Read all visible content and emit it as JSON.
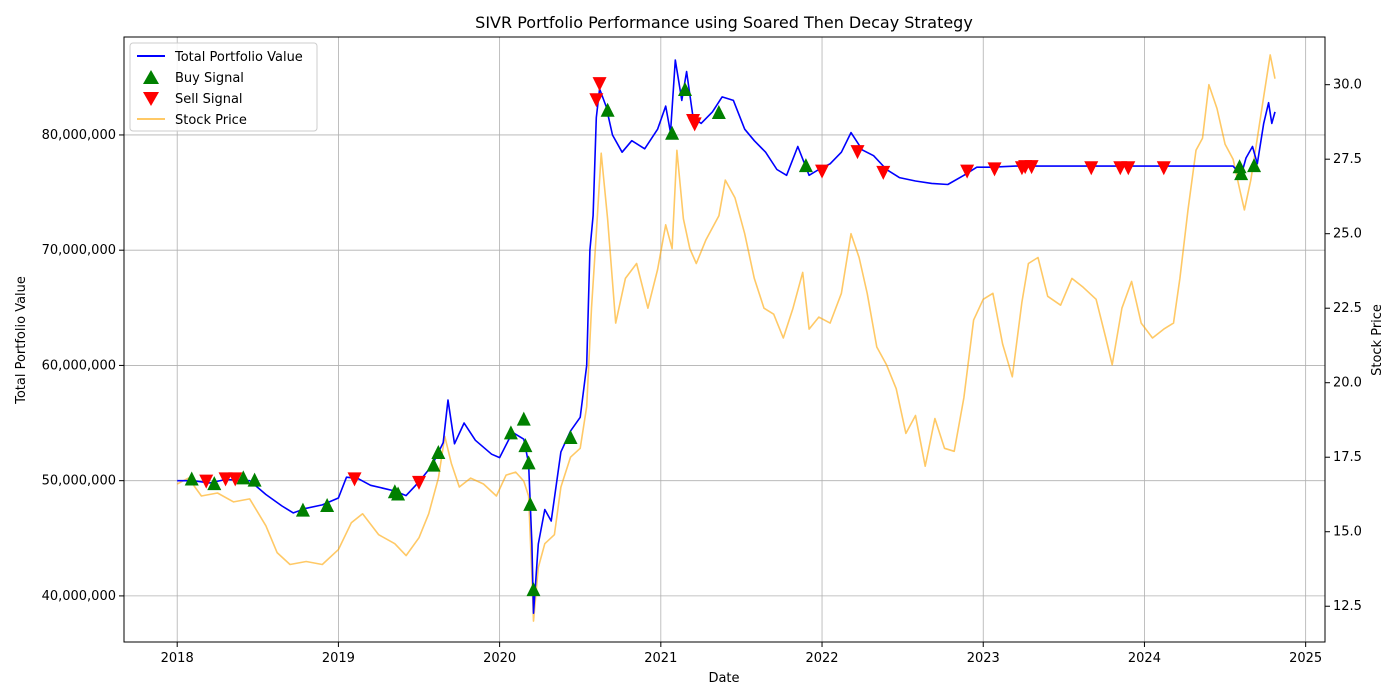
{
  "chart_data": {
    "type": "line",
    "title": "SIVR Portfolio Performance using Soared Then Decay Strategy",
    "xlabel": "Date",
    "ylabel_left": "Total Portfolio Value",
    "ylabel_right": "Stock Price",
    "x_ticks": [
      "2018",
      "2019",
      "2020",
      "2021",
      "2022",
      "2023",
      "2024",
      "2025"
    ],
    "xlim": [
      2017.67,
      2025.12
    ],
    "ylim_left": [
      36000000,
      88500000
    ],
    "ylim_right": [
      11.3,
      31.6
    ],
    "y_ticks_left": [
      {
        "value": 40000000,
        "label": "40,000,000"
      },
      {
        "value": 50000000,
        "label": "50,000,000"
      },
      {
        "value": 60000000,
        "label": "60,000,000"
      },
      {
        "value": 70000000,
        "label": "70,000,000"
      },
      {
        "value": 80000000,
        "label": "80,000,000"
      }
    ],
    "y_ticks_right": [
      {
        "value": 12.5,
        "label": "12.5"
      },
      {
        "value": 15.0,
        "label": "15.0"
      },
      {
        "value": 17.5,
        "label": "17.5"
      },
      {
        "value": 20.0,
        "label": "20.0"
      },
      {
        "value": 22.5,
        "label": "22.5"
      },
      {
        "value": 25.0,
        "label": "25.0"
      },
      {
        "value": 27.5,
        "label": "27.5"
      },
      {
        "value": 30.0,
        "label": "30.0"
      }
    ],
    "grid": true,
    "legend": {
      "position": "top-left",
      "entries": [
        {
          "label": "Total Portfolio Value",
          "marker": "line",
          "color": "#0000ff"
        },
        {
          "label": "Buy Signal",
          "marker": "triangle-up",
          "color": "#008000"
        },
        {
          "label": "Sell Signal",
          "marker": "triangle-down",
          "color": "#ff0000"
        },
        {
          "label": "Stock Price",
          "marker": "line",
          "color": "#ffa500"
        }
      ]
    },
    "series": [
      {
        "name": "Total Portfolio Value",
        "axis": "left",
        "color": "#0000ff",
        "points": [
          [
            2018.0,
            50000000
          ],
          [
            2018.1,
            50000000
          ],
          [
            2018.2,
            49800000
          ],
          [
            2018.3,
            50100000
          ],
          [
            2018.45,
            50000000
          ],
          [
            2018.55,
            48800000
          ],
          [
            2018.65,
            47800000
          ],
          [
            2018.72,
            47200000
          ],
          [
            2018.8,
            47600000
          ],
          [
            2018.9,
            47900000
          ],
          [
            2019.0,
            48500000
          ],
          [
            2019.05,
            50300000
          ],
          [
            2019.12,
            50200000
          ],
          [
            2019.2,
            49600000
          ],
          [
            2019.35,
            49100000
          ],
          [
            2019.42,
            48700000
          ],
          [
            2019.5,
            49900000
          ],
          [
            2019.58,
            51300000
          ],
          [
            2019.65,
            53300000
          ],
          [
            2019.68,
            57000000
          ],
          [
            2019.72,
            53200000
          ],
          [
            2019.78,
            55000000
          ],
          [
            2019.85,
            53500000
          ],
          [
            2019.95,
            52300000
          ],
          [
            2020.0,
            52000000
          ],
          [
            2020.08,
            54200000
          ],
          [
            2020.15,
            53600000
          ],
          [
            2020.18,
            51500000
          ],
          [
            2020.2,
            44500000
          ],
          [
            2020.21,
            38500000
          ],
          [
            2020.24,
            44500000
          ],
          [
            2020.28,
            47500000
          ],
          [
            2020.32,
            46500000
          ],
          [
            2020.38,
            52500000
          ],
          [
            2020.44,
            54300000
          ],
          [
            2020.5,
            55500000
          ],
          [
            2020.54,
            60000000
          ],
          [
            2020.56,
            70000000
          ],
          [
            2020.58,
            73000000
          ],
          [
            2020.6,
            81500000
          ],
          [
            2020.62,
            84000000
          ],
          [
            2020.66,
            82500000
          ],
          [
            2020.7,
            80000000
          ],
          [
            2020.76,
            78500000
          ],
          [
            2020.82,
            79500000
          ],
          [
            2020.9,
            78800000
          ],
          [
            2020.98,
            80500000
          ],
          [
            2021.03,
            82500000
          ],
          [
            2021.06,
            80200000
          ],
          [
            2021.09,
            86500000
          ],
          [
            2021.13,
            83000000
          ],
          [
            2021.16,
            85500000
          ],
          [
            2021.2,
            81500000
          ],
          [
            2021.25,
            81000000
          ],
          [
            2021.32,
            82000000
          ],
          [
            2021.38,
            83300000
          ],
          [
            2021.45,
            83000000
          ],
          [
            2021.52,
            80500000
          ],
          [
            2021.58,
            79500000
          ],
          [
            2021.65,
            78500000
          ],
          [
            2021.72,
            77000000
          ],
          [
            2021.78,
            76500000
          ],
          [
            2021.85,
            79000000
          ],
          [
            2021.92,
            76500000
          ],
          [
            2021.98,
            77000000
          ],
          [
            2022.05,
            77500000
          ],
          [
            2022.12,
            78500000
          ],
          [
            2022.18,
            80200000
          ],
          [
            2022.25,
            78700000
          ],
          [
            2022.32,
            78200000
          ],
          [
            2022.4,
            77000000
          ],
          [
            2022.48,
            76300000
          ],
          [
            2022.58,
            76000000
          ],
          [
            2022.68,
            75800000
          ],
          [
            2022.78,
            75700000
          ],
          [
            2022.88,
            76500000
          ],
          [
            2022.96,
            77200000
          ],
          [
            2023.05,
            77200000
          ],
          [
            2023.2,
            77300000
          ],
          [
            2023.4,
            77300000
          ],
          [
            2023.7,
            77300000
          ],
          [
            2024.0,
            77300000
          ],
          [
            2024.3,
            77300000
          ],
          [
            2024.55,
            77300000
          ],
          [
            2024.6,
            76500000
          ],
          [
            2024.63,
            78000000
          ],
          [
            2024.67,
            79000000
          ],
          [
            2024.7,
            77500000
          ],
          [
            2024.74,
            81000000
          ],
          [
            2024.77,
            82800000
          ],
          [
            2024.79,
            81000000
          ],
          [
            2024.81,
            82000000
          ]
        ]
      },
      {
        "name": "Stock Price",
        "axis": "right",
        "color": "#ffa500",
        "points": [
          [
            2018.0,
            16.6
          ],
          [
            2018.07,
            16.8
          ],
          [
            2018.15,
            16.2
          ],
          [
            2018.25,
            16.3
          ],
          [
            2018.35,
            16.0
          ],
          [
            2018.45,
            16.1
          ],
          [
            2018.55,
            15.2
          ],
          [
            2018.62,
            14.3
          ],
          [
            2018.7,
            13.9
          ],
          [
            2018.8,
            14.0
          ],
          [
            2018.9,
            13.9
          ],
          [
            2019.0,
            14.4
          ],
          [
            2019.08,
            15.3
          ],
          [
            2019.15,
            15.6
          ],
          [
            2019.25,
            14.9
          ],
          [
            2019.35,
            14.6
          ],
          [
            2019.42,
            14.2
          ],
          [
            2019.5,
            14.8
          ],
          [
            2019.56,
            15.6
          ],
          [
            2019.62,
            16.8
          ],
          [
            2019.66,
            18.2
          ],
          [
            2019.7,
            17.3
          ],
          [
            2019.75,
            16.5
          ],
          [
            2019.82,
            16.8
          ],
          [
            2019.9,
            16.6
          ],
          [
            2019.98,
            16.2
          ],
          [
            2020.04,
            16.9
          ],
          [
            2020.1,
            17.0
          ],
          [
            2020.15,
            16.7
          ],
          [
            2020.18,
            16.2
          ],
          [
            2020.2,
            13.5
          ],
          [
            2020.21,
            12.0
          ],
          [
            2020.24,
            13.8
          ],
          [
            2020.28,
            14.6
          ],
          [
            2020.34,
            14.9
          ],
          [
            2020.38,
            16.5
          ],
          [
            2020.44,
            17.5
          ],
          [
            2020.5,
            17.8
          ],
          [
            2020.54,
            19.2
          ],
          [
            2020.57,
            22.5
          ],
          [
            2020.6,
            25.0
          ],
          [
            2020.63,
            27.7
          ],
          [
            2020.67,
            25.5
          ],
          [
            2020.72,
            22.0
          ],
          [
            2020.78,
            23.5
          ],
          [
            2020.85,
            24.0
          ],
          [
            2020.92,
            22.5
          ],
          [
            2020.98,
            23.8
          ],
          [
            2021.03,
            25.3
          ],
          [
            2021.07,
            24.5
          ],
          [
            2021.1,
            27.8
          ],
          [
            2021.14,
            25.5
          ],
          [
            2021.18,
            24.5
          ],
          [
            2021.22,
            24.0
          ],
          [
            2021.28,
            24.8
          ],
          [
            2021.36,
            25.6
          ],
          [
            2021.4,
            26.8
          ],
          [
            2021.46,
            26.2
          ],
          [
            2021.52,
            25.0
          ],
          [
            2021.58,
            23.5
          ],
          [
            2021.64,
            22.5
          ],
          [
            2021.7,
            22.3
          ],
          [
            2021.76,
            21.5
          ],
          [
            2021.82,
            22.5
          ],
          [
            2021.88,
            23.7
          ],
          [
            2021.92,
            21.8
          ],
          [
            2021.98,
            22.2
          ],
          [
            2022.05,
            22.0
          ],
          [
            2022.12,
            23.0
          ],
          [
            2022.18,
            25.0
          ],
          [
            2022.23,
            24.2
          ],
          [
            2022.28,
            23.0
          ],
          [
            2022.34,
            21.2
          ],
          [
            2022.4,
            20.6
          ],
          [
            2022.46,
            19.8
          ],
          [
            2022.52,
            18.3
          ],
          [
            2022.58,
            18.9
          ],
          [
            2022.64,
            17.2
          ],
          [
            2022.7,
            18.8
          ],
          [
            2022.76,
            17.8
          ],
          [
            2022.82,
            17.7
          ],
          [
            2022.88,
            19.5
          ],
          [
            2022.94,
            22.1
          ],
          [
            2023.0,
            22.8
          ],
          [
            2023.06,
            23.0
          ],
          [
            2023.12,
            21.3
          ],
          [
            2023.18,
            20.2
          ],
          [
            2023.24,
            22.7
          ],
          [
            2023.28,
            24.0
          ],
          [
            2023.34,
            24.2
          ],
          [
            2023.4,
            22.9
          ],
          [
            2023.48,
            22.6
          ],
          [
            2023.55,
            23.5
          ],
          [
            2023.62,
            23.2
          ],
          [
            2023.7,
            22.8
          ],
          [
            2023.76,
            21.5
          ],
          [
            2023.8,
            20.6
          ],
          [
            2023.86,
            22.5
          ],
          [
            2023.92,
            23.4
          ],
          [
            2023.98,
            22.0
          ],
          [
            2024.05,
            21.5
          ],
          [
            2024.12,
            21.8
          ],
          [
            2024.18,
            22.0
          ],
          [
            2024.22,
            23.5
          ],
          [
            2024.27,
            25.8
          ],
          [
            2024.32,
            27.8
          ],
          [
            2024.36,
            28.2
          ],
          [
            2024.4,
            30.0
          ],
          [
            2024.45,
            29.2
          ],
          [
            2024.5,
            28.0
          ],
          [
            2024.55,
            27.5
          ],
          [
            2024.59,
            26.5
          ],
          [
            2024.62,
            25.8
          ],
          [
            2024.66,
            26.8
          ],
          [
            2024.7,
            28.2
          ],
          [
            2024.74,
            29.6
          ],
          [
            2024.78,
            31.0
          ],
          [
            2024.81,
            30.2
          ]
        ]
      }
    ],
    "buy_signals": [
      [
        2018.09,
        50100000
      ],
      [
        2018.23,
        49700000
      ],
      [
        2018.41,
        50200000
      ],
      [
        2018.48,
        50000000
      ],
      [
        2018.78,
        47400000
      ],
      [
        2018.93,
        47800000
      ],
      [
        2019.35,
        49000000
      ],
      [
        2019.37,
        48800000
      ],
      [
        2019.59,
        51300000
      ],
      [
        2019.62,
        52400000
      ],
      [
        2020.07,
        54100000
      ],
      [
        2020.15,
        55300000
      ],
      [
        2020.16,
        53000000
      ],
      [
        2020.18,
        51500000
      ],
      [
        2020.19,
        47900000
      ],
      [
        2020.21,
        40500000
      ],
      [
        2020.44,
        53700000
      ],
      [
        2020.67,
        82100000
      ],
      [
        2021.07,
        80100000
      ],
      [
        2021.15,
        83900000
      ],
      [
        2021.36,
        81900000
      ],
      [
        2021.9,
        77300000
      ],
      [
        2024.59,
        77200000
      ],
      [
        2024.6,
        76600000
      ],
      [
        2024.68,
        77300000
      ]
    ],
    "sell_signals": [
      [
        2018.18,
        50000000
      ],
      [
        2018.3,
        50200000
      ],
      [
        2018.36,
        50200000
      ],
      [
        2019.1,
        50200000
      ],
      [
        2019.5,
        49900000
      ],
      [
        2020.6,
        83100000
      ],
      [
        2020.62,
        84500000
      ],
      [
        2021.2,
        81300000
      ],
      [
        2021.21,
        81000000
      ],
      [
        2022.0,
        76900000
      ],
      [
        2022.22,
        78600000
      ],
      [
        2022.38,
        76800000
      ],
      [
        2022.9,
        76900000
      ],
      [
        2023.07,
        77100000
      ],
      [
        2023.24,
        77200000
      ],
      [
        2023.26,
        77300000
      ],
      [
        2023.3,
        77300000
      ],
      [
        2023.67,
        77200000
      ],
      [
        2023.85,
        77200000
      ],
      [
        2023.9,
        77200000
      ],
      [
        2024.12,
        77200000
      ]
    ]
  }
}
